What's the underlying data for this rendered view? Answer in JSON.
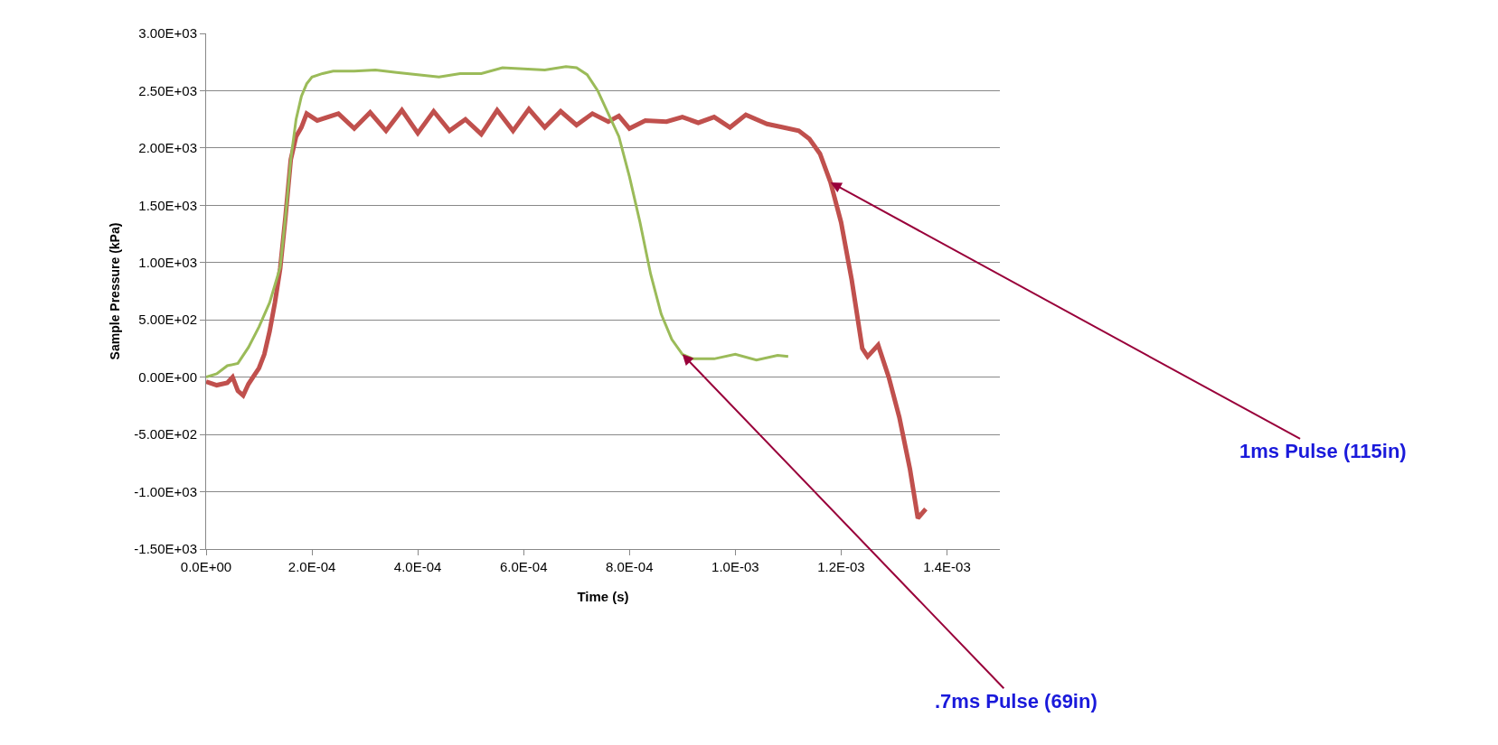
{
  "chart_data": {
    "type": "line",
    "xlabel": "Time (s)",
    "ylabel": "Sample Pressure (kPa)",
    "xlim": [
      0,
      0.0015
    ],
    "ylim": [
      -1500,
      3000
    ],
    "xticks": [
      {
        "value": 0,
        "label": "0.0E+00"
      },
      {
        "value": 0.0002,
        "label": "2.0E-04"
      },
      {
        "value": 0.0004,
        "label": "4.0E-04"
      },
      {
        "value": 0.0006,
        "label": "6.0E-04"
      },
      {
        "value": 0.0008,
        "label": "8.0E-04"
      },
      {
        "value": 0.001,
        "label": "1.0E-03"
      },
      {
        "value": 0.0012,
        "label": "1.2E-03"
      },
      {
        "value": 0.0014,
        "label": "1.4E-03"
      }
    ],
    "yticks": [
      {
        "value": -1500,
        "label": "-1.50E+03"
      },
      {
        "value": -1000,
        "label": "-1.00E+03"
      },
      {
        "value": -500,
        "label": "-5.00E+02"
      },
      {
        "value": 0,
        "label": "0.00E+00"
      },
      {
        "value": 500,
        "label": "5.00E+02"
      },
      {
        "value": 1000,
        "label": "1.00E+03"
      },
      {
        "value": 1500,
        "label": "1.50E+03"
      },
      {
        "value": 2000,
        "label": "2.00E+03"
      },
      {
        "value": 2500,
        "label": "2.50E+03"
      },
      {
        "value": 3000,
        "label": "3.00E+03"
      }
    ],
    "grid": "y",
    "marker": "none",
    "line_style": "solid",
    "series": [
      {
        "color": "#c0504d",
        "x": [
          0,
          2e-05,
          4e-05,
          5e-05,
          6e-05,
          7e-05,
          8e-05,
          0.0001,
          0.00011,
          0.00012,
          0.00013,
          0.00014,
          0.00015,
          0.00016,
          0.00017,
          0.00018,
          0.00019,
          0.00021,
          0.00025,
          0.00028,
          0.00031,
          0.00034,
          0.00037,
          0.0004,
          0.00043,
          0.00046,
          0.00049,
          0.00052,
          0.00055,
          0.00058,
          0.00061,
          0.00064,
          0.00067,
          0.0007,
          0.00073,
          0.00076,
          0.00078,
          0.0008,
          0.00083,
          0.00087,
          0.0009,
          0.00093,
          0.00096,
          0.00099,
          0.00102,
          0.00106,
          0.00109,
          0.00112,
          0.00114,
          0.00116,
          0.00118,
          0.0012,
          0.00122,
          0.00124,
          0.00125,
          0.00127,
          0.00129,
          0.00131,
          0.00133,
          0.001345,
          0.00136
        ],
        "values": [
          -40,
          -70,
          -50,
          0,
          -120,
          -160,
          -60,
          80,
          200,
          400,
          650,
          950,
          1400,
          1900,
          2100,
          2180,
          2300,
          2240,
          2300,
          2170,
          2310,
          2150,
          2330,
          2130,
          2320,
          2150,
          2250,
          2120,
          2330,
          2150,
          2340,
          2180,
          2320,
          2200,
          2300,
          2230,
          2280,
          2170,
          2240,
          2230,
          2270,
          2220,
          2270,
          2180,
          2290,
          2210,
          2180,
          2150,
          2080,
          1950,
          1700,
          1350,
          850,
          250,
          180,
          280,
          0,
          -350,
          -800,
          -1230,
          -1150
        ]
      },
      {
        "color": "#9bbb59",
        "x": [
          0,
          2e-05,
          4e-05,
          6e-05,
          8e-05,
          0.0001,
          0.00012,
          0.00014,
          0.00015,
          0.00016,
          0.00017,
          0.00018,
          0.00019,
          0.0002,
          0.00022,
          0.00024,
          0.00028,
          0.00032,
          0.00036,
          0.0004,
          0.00044,
          0.00048,
          0.00052,
          0.00056,
          0.0006,
          0.00064,
          0.00068,
          0.0007,
          0.00072,
          0.00074,
          0.00076,
          0.00078,
          0.0008,
          0.00082,
          0.00084,
          0.00086,
          0.00088,
          0.0009,
          0.00092,
          0.00096,
          0.001,
          0.00104,
          0.00108,
          0.0011
        ],
        "values": [
          0,
          30,
          100,
          120,
          260,
          440,
          650,
          960,
          1400,
          1900,
          2250,
          2450,
          2560,
          2620,
          2650,
          2670,
          2670,
          2680,
          2660,
          2640,
          2620,
          2650,
          2650,
          2700,
          2690,
          2680,
          2710,
          2700,
          2640,
          2500,
          2300,
          2100,
          1750,
          1350,
          900,
          550,
          330,
          200,
          160,
          160,
          200,
          150,
          190,
          180
        ]
      }
    ],
    "annotations": [
      {
        "text": "1ms Pulse (115in)",
        "x": 0.00118,
        "y": 1700
      },
      {
        "text": ".7ms Pulse (69in)",
        "x": 0.0009,
        "y": 200
      }
    ]
  }
}
